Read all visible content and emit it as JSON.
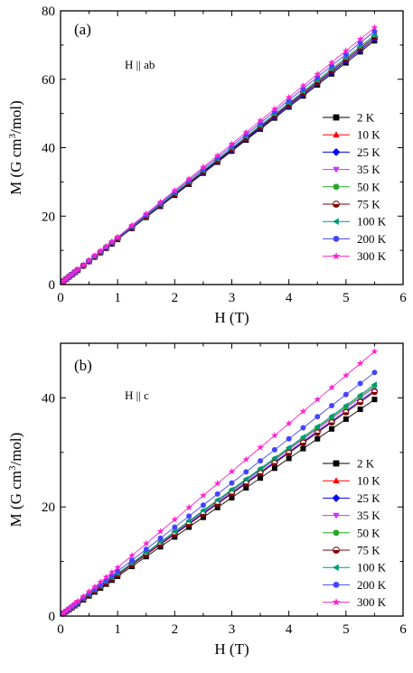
{
  "chart_data": [
    {
      "type": "scatter",
      "panel_label": "(a)",
      "annotation": "H || ab",
      "xlabel": "H (T)",
      "ylabel_main": "M (G cm",
      "ylabel_sup": "3",
      "ylabel_end": "/mol)",
      "xlim": [
        0,
        6
      ],
      "ylim": [
        0,
        80
      ],
      "xticks": [
        0,
        1,
        2,
        3,
        4,
        5,
        6
      ],
      "yticks": [
        0,
        20,
        40,
        60,
        80
      ],
      "grid": false,
      "legend_position": "right",
      "x": [
        0.05,
        0.1,
        0.15,
        0.2,
        0.25,
        0.3,
        0.4,
        0.5,
        0.6,
        0.7,
        0.8,
        0.9,
        1.0,
        1.25,
        1.5,
        1.75,
        2.0,
        2.25,
        2.5,
        2.75,
        3.0,
        3.25,
        3.5,
        3.75,
        4.0,
        4.25,
        4.5,
        4.75,
        5.0,
        5.25,
        5.5
      ],
      "series": [
        {
          "name": "2 K",
          "marker": "square",
          "color": "#000000",
          "slope": 12.9,
          "offset": 0.3
        },
        {
          "name": "10 K",
          "marker": "triangle-up",
          "color": "#ff0000",
          "slope": 13.0,
          "offset": 0.3
        },
        {
          "name": "25 K",
          "marker": "diamond",
          "color": "#0000ff",
          "slope": 13.0,
          "offset": 0.3
        },
        {
          "name": "35 K",
          "marker": "triangle-down",
          "color": "#cc33ff",
          "slope": 13.1,
          "offset": 0.3
        },
        {
          "name": "50 K",
          "marker": "circle",
          "color": "#22aa22",
          "slope": 13.1,
          "offset": 0.3
        },
        {
          "name": "75 K",
          "marker": "circle-half",
          "color": "#800000",
          "slope": 13.1,
          "offset": 0.3
        },
        {
          "name": "100 K",
          "marker": "triangle-left",
          "color": "#00997a",
          "slope": 13.2,
          "offset": 0.3
        },
        {
          "name": "200 K",
          "marker": "circle",
          "color": "#4444ff",
          "slope": 13.4,
          "offset": 0.3
        },
        {
          "name": "300 K",
          "marker": "star",
          "color": "#ff22cc",
          "slope": 13.6,
          "offset": 0.3
        }
      ]
    },
    {
      "type": "scatter",
      "panel_label": "(b)",
      "annotation": "H || c",
      "xlabel": "H (T)",
      "ylabel_main": "M (G cm",
      "ylabel_sup": "3",
      "ylabel_end": "/mol)",
      "xlim": [
        0,
        6
      ],
      "ylim": [
        0,
        50
      ],
      "xticks": [
        0,
        1,
        2,
        3,
        4,
        5,
        6
      ],
      "yticks": [
        0,
        20,
        40
      ],
      "grid": false,
      "legend_position": "right",
      "x": [
        0.05,
        0.1,
        0.15,
        0.2,
        0.25,
        0.3,
        0.4,
        0.5,
        0.6,
        0.7,
        0.8,
        0.9,
        1.0,
        1.25,
        1.5,
        1.75,
        2.0,
        2.25,
        2.5,
        2.75,
        3.0,
        3.25,
        3.5,
        3.75,
        4.0,
        4.25,
        4.5,
        4.75,
        5.0,
        5.25,
        5.5
      ],
      "series": [
        {
          "name": "2 K",
          "marker": "square",
          "color": "#000000",
          "slope": 7.2,
          "offset": 0.1
        },
        {
          "name": "10 K",
          "marker": "triangle-up",
          "color": "#ff0000",
          "slope": 7.45,
          "offset": 0.1
        },
        {
          "name": "25 K",
          "marker": "diamond",
          "color": "#0000ff",
          "slope": 7.5,
          "offset": 0.1
        },
        {
          "name": "35 K",
          "marker": "triangle-down",
          "color": "#cc33ff",
          "slope": 7.6,
          "offset": 0.1
        },
        {
          "name": "50 K",
          "marker": "circle",
          "color": "#22aa22",
          "slope": 7.65,
          "offset": 0.1
        },
        {
          "name": "75 K",
          "marker": "circle-half",
          "color": "#800000",
          "slope": 7.45,
          "offset": 0.1
        },
        {
          "name": "100 K",
          "marker": "triangle-left",
          "color": "#00997a",
          "slope": 7.7,
          "offset": 0.1
        },
        {
          "name": "200 K",
          "marker": "circle",
          "color": "#4444ff",
          "slope": 8.1,
          "offset": 0.1
        },
        {
          "name": "300 K",
          "marker": "star",
          "color": "#ff22cc",
          "slope": 8.8,
          "offset": 0.1
        }
      ]
    }
  ]
}
